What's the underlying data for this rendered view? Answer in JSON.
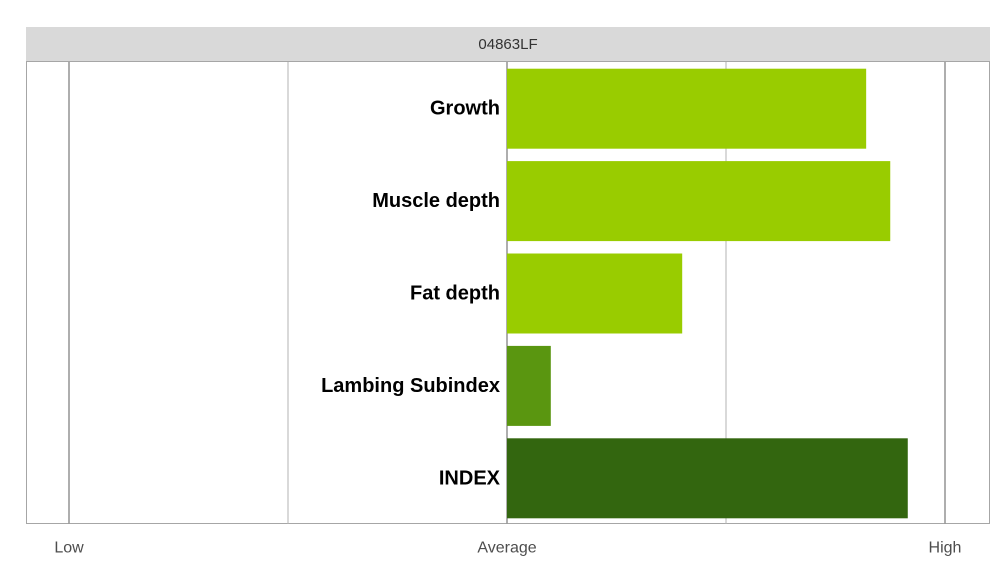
{
  "chart_data": {
    "type": "bar",
    "orientation": "horizontal",
    "panel_title": "04863LF",
    "categories": [
      "Growth",
      "Muscle depth",
      "Fat depth",
      "Lambing Subindex",
      "INDEX"
    ],
    "values": [
      0.82,
      0.875,
      0.4,
      0.1,
      0.915
    ],
    "value_scale": "fraction of the Average-to-High range (0 = Average, 1 = High)",
    "colors": [
      "#99cc00",
      "#99cc00",
      "#99cc00",
      "#5a9610",
      "#33660f"
    ],
    "xlim": [
      -1,
      1
    ],
    "x_tick_values": [
      -1,
      0,
      1
    ],
    "x_tick_labels": [
      "Low",
      "Average",
      "High"
    ],
    "grid": true,
    "legend": "none"
  }
}
